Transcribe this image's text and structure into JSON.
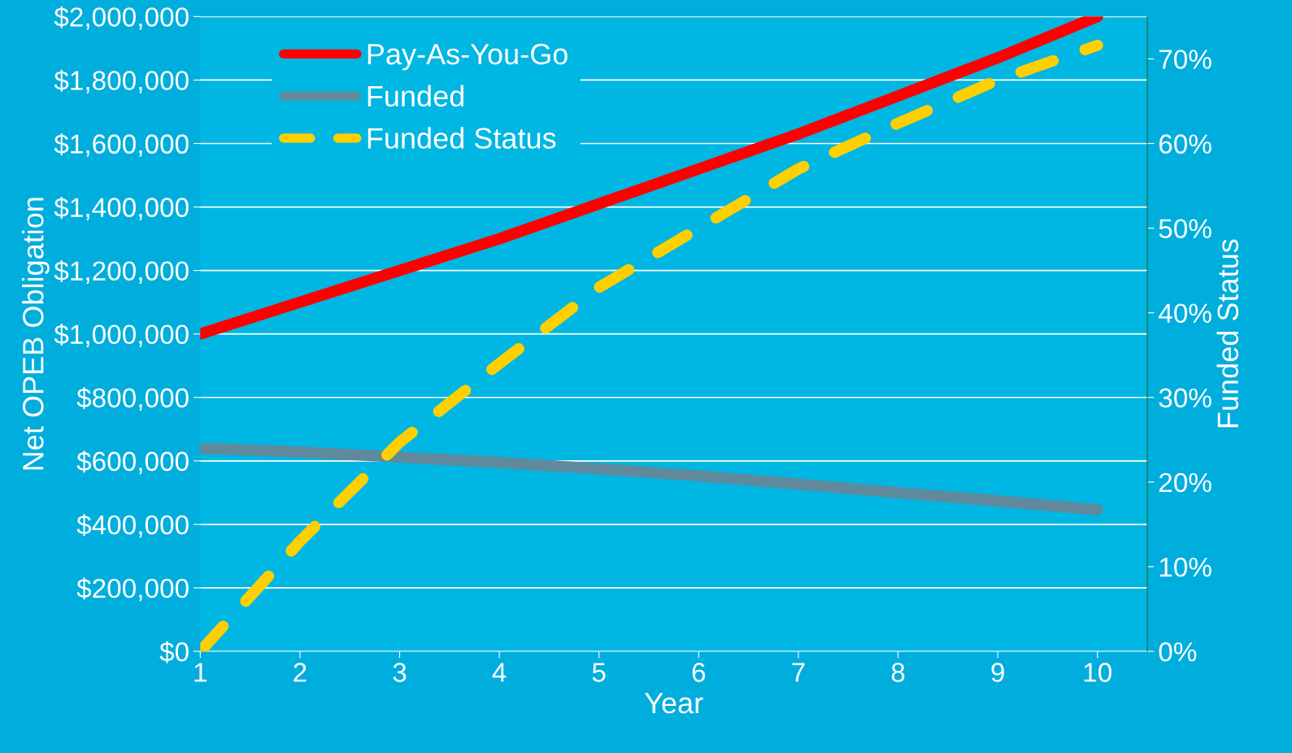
{
  "chart_data": {
    "type": "line",
    "xlabel": "Year",
    "ylabel": "Net OPEB Obligation",
    "y2label": "Funded Status",
    "x": [
      1,
      2,
      3,
      4,
      5,
      6,
      7,
      8,
      9,
      10
    ],
    "series": [
      {
        "name": "Pay-As-You-Go",
        "color": "#ff0000",
        "values": [
          1000000,
          1100000,
          1200000,
          1300000,
          1410000,
          1520000,
          1630000,
          1750000,
          1870000,
          2000000
        ]
      },
      {
        "name": "Funded",
        "color": "#5f8a9e",
        "values": [
          640000,
          628000,
          612000,
          595000,
          575000,
          553000,
          527000,
          500000,
          474000,
          446000
        ]
      },
      {
        "name": "Funded Status",
        "color": "#ffd000",
        "axis": "y2",
        "line_style": "dashed",
        "values": [
          0,
          13,
          24.7,
          34,
          43,
          50,
          57,
          62.4,
          67.5,
          71.6
        ]
      }
    ],
    "xlim": [
      1,
      10.5
    ],
    "xticks": [
      1,
      2,
      3,
      4,
      5,
      6,
      7,
      8,
      9,
      10
    ],
    "ylim": [
      0,
      2000000
    ],
    "yticks": [
      {
        "value": 0,
        "label": "$0"
      },
      {
        "value": 200000,
        "label": "$200,000"
      },
      {
        "value": 400000,
        "label": "$400,000"
      },
      {
        "value": 600000,
        "label": "$600,000"
      },
      {
        "value": 800000,
        "label": "$800,000"
      },
      {
        "value": 1000000,
        "label": "$1,000,000"
      },
      {
        "value": 1200000,
        "label": "$1,200,000"
      },
      {
        "value": 1400000,
        "label": "$1,400,000"
      },
      {
        "value": 1600000,
        "label": "$1,600,000"
      },
      {
        "value": 1800000,
        "label": "$1,800,000"
      },
      {
        "value": 2000000,
        "label": "$2,000,000"
      }
    ],
    "y2lim": [
      0,
      75
    ],
    "y2ticks": [
      {
        "value": 0,
        "label": "0%"
      },
      {
        "value": 10,
        "label": "10%"
      },
      {
        "value": 20,
        "label": "20%"
      },
      {
        "value": 30,
        "label": "30%"
      },
      {
        "value": 40,
        "label": "40%"
      },
      {
        "value": 50,
        "label": "50%"
      },
      {
        "value": 60,
        "label": "60%"
      },
      {
        "value": 70,
        "label": "70%"
      }
    ],
    "grid": "y",
    "legend": "top left"
  }
}
